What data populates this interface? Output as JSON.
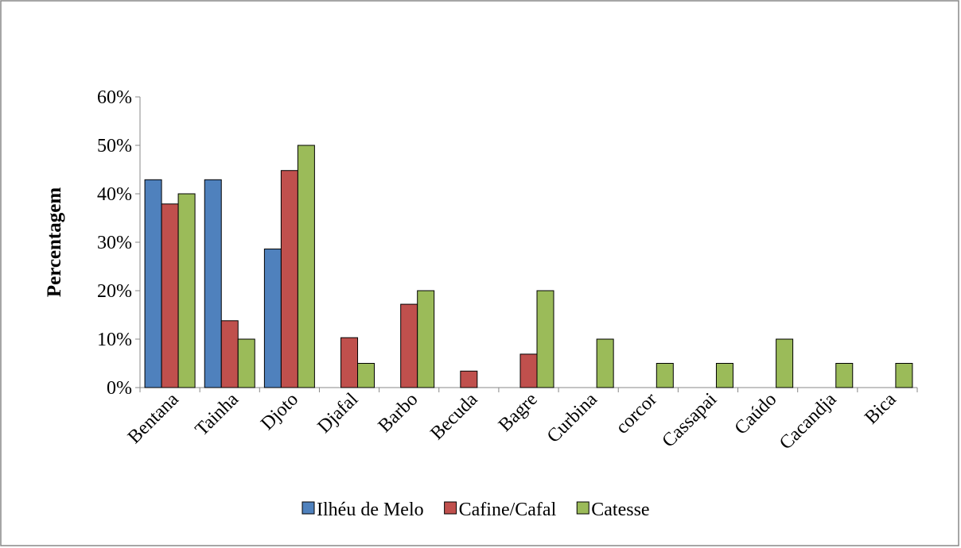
{
  "chart_data": {
    "type": "bar",
    "categories": [
      "Bentana",
      "Tainha",
      "Djoto",
      "Djafal",
      "Barbo",
      "Becuda",
      "Bagre",
      "Curbina",
      "corcor",
      "Cassapai",
      "Caúdo",
      "Cacandja",
      "Bica"
    ],
    "y_label": "Percentagem",
    "series": [
      {
        "name": "Ilhéu de Melo",
        "color": "#4f81bd",
        "values": [
          42.9,
          42.9,
          28.6,
          0,
          0,
          0,
          0,
          0,
          0,
          0,
          0,
          0,
          0
        ]
      },
      {
        "name": "Cafine/Cafal",
        "color": "#c0504d",
        "values": [
          37.9,
          13.8,
          44.8,
          10.3,
          17.2,
          3.4,
          6.9,
          0,
          0,
          0,
          0,
          0,
          0
        ]
      },
      {
        "name": "Catesse",
        "color": "#9bbb59",
        "values": [
          40,
          10,
          50,
          5,
          20,
          0,
          20,
          10,
          5,
          5,
          10,
          5,
          5
        ]
      }
    ],
    "ylim": [
      0,
      60
    ],
    "yticks": [
      {
        "value": 0,
        "label": "0%"
      },
      {
        "value": 10,
        "label": "10%"
      },
      {
        "value": 20,
        "label": "20%"
      },
      {
        "value": 30,
        "label": "30%"
      },
      {
        "value": 40,
        "label": "40%"
      },
      {
        "value": 50,
        "label": "50%"
      },
      {
        "value": 60,
        "label": "60%"
      }
    ],
    "legend": "bottom"
  }
}
